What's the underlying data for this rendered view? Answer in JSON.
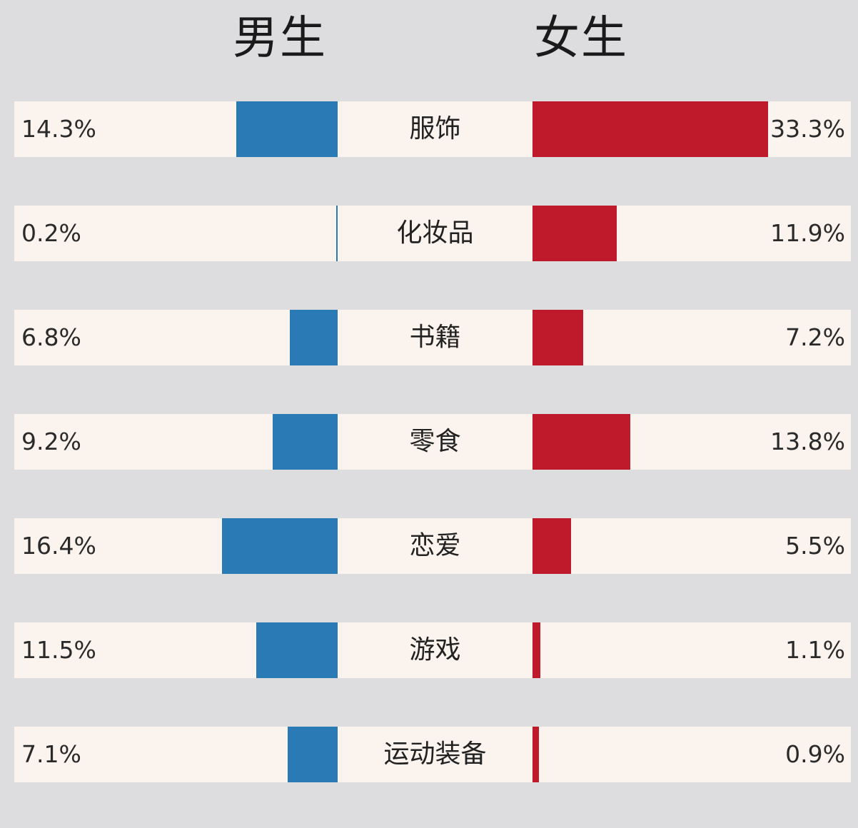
{
  "header": {
    "male": "男生",
    "female": "女生"
  },
  "colors": {
    "male": "#2a7ab5",
    "female": "#be1a2c",
    "row_bg": "#fbf3ee",
    "page_bg": "#dddcdf"
  },
  "rows": [
    {
      "category": "服饰",
      "male": "14.3%",
      "female": "33.3%"
    },
    {
      "category": "化妆品",
      "male": "0.2%",
      "female": "11.9%"
    },
    {
      "category": "书籍",
      "male": "6.8%",
      "female": "7.2%"
    },
    {
      "category": "零食",
      "male": "9.2%",
      "female": "13.8%"
    },
    {
      "category": "恋爱",
      "male": "16.4%",
      "female": "5.5%"
    },
    {
      "category": "游戏",
      "male": "11.5%",
      "female": "1.1%"
    },
    {
      "category": "运动装备",
      "male": "7.1%",
      "female": "0.9%"
    }
  ],
  "chart_data": {
    "type": "bar",
    "orientation": "horizontal-diverging",
    "title": "",
    "categories": [
      "服饰",
      "化妆品",
      "书籍",
      "零食",
      "恋爱",
      "游戏",
      "运动装备"
    ],
    "series": [
      {
        "name": "男生",
        "color": "#2a7ab5",
        "values": [
          14.3,
          0.2,
          6.8,
          9.2,
          16.4,
          11.5,
          7.1
        ]
      },
      {
        "name": "女生",
        "color": "#be1a2c",
        "values": [
          33.3,
          11.9,
          7.2,
          13.8,
          5.5,
          1.1,
          0.9
        ]
      }
    ],
    "unit": "%",
    "xlabel": "",
    "ylabel": "",
    "legend": [
      "男生",
      "女生"
    ],
    "legend_position": "top",
    "grid": false
  }
}
